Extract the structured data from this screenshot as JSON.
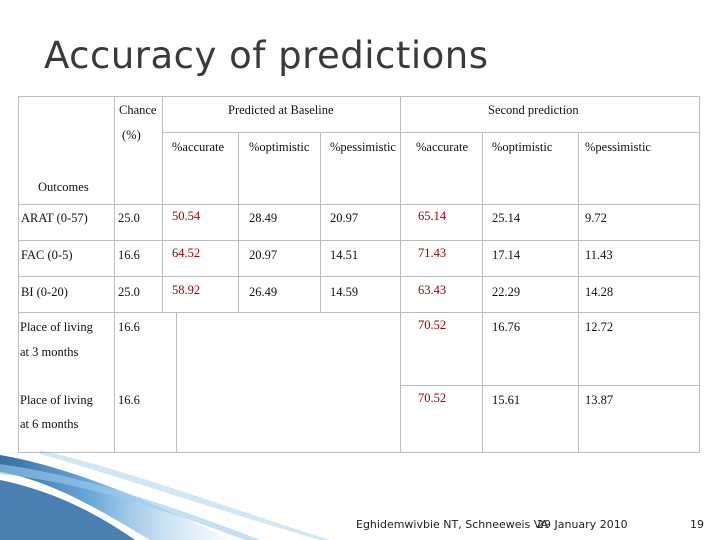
{
  "slide": {
    "title": "Accuracy of predictions"
  },
  "table": {
    "header": {
      "chance": "Chance",
      "chance_unit": "(%)",
      "baseline_group": "Predicted at Baseline",
      "second_group": "Second prediction",
      "outcomes": "Outcomes",
      "columns": [
        "%accurate",
        "%optimistic",
        "%pessimistic",
        "%accurate",
        "%optimistic",
        "%pessimistic"
      ]
    },
    "rows": [
      {
        "outcome": "ARAT (0-57)",
        "chance": "25.0",
        "base_acc": "50.54",
        "base_opt": "28.49",
        "base_pes": "20.97",
        "sec_acc": "65.14",
        "sec_opt": "25.14",
        "sec_pes": "9.72"
      },
      {
        "outcome": "FAC (0-5)",
        "chance": "16.6",
        "base_acc": "64.52",
        "base_opt": "20.97",
        "base_pes": "14.51",
        "sec_acc": "71.43",
        "sec_opt": "17.14",
        "sec_pes": "11.43"
      },
      {
        "outcome": "BI (0-20)",
        "chance": "25.0",
        "base_acc": "58.92",
        "base_opt": "26.49",
        "base_pes": "14.59",
        "sec_acc": "63.43",
        "sec_opt": "22.29",
        "sec_pes": "14.28"
      }
    ],
    "living_rows": [
      {
        "line1": "Place of living",
        "line2": "at 3 months",
        "chance": "16.6",
        "sec_acc": "70.52",
        "sec_opt": "16.76",
        "sec_pes": "12.72"
      },
      {
        "line1": "Place of living",
        "line2": "at 6 months",
        "chance": "16.6",
        "sec_acc": "70.52",
        "sec_opt": "15.61",
        "sec_pes": "13.87"
      }
    ]
  },
  "footer": {
    "authors": "Eghidemwivbie NT, Schneeweis VA",
    "date": "29 January 2010",
    "page": "19"
  },
  "colors": {
    "accent_red": "#a00000",
    "title_gray": "#3a3a3a",
    "deco_blue": "#5a9fd4"
  }
}
